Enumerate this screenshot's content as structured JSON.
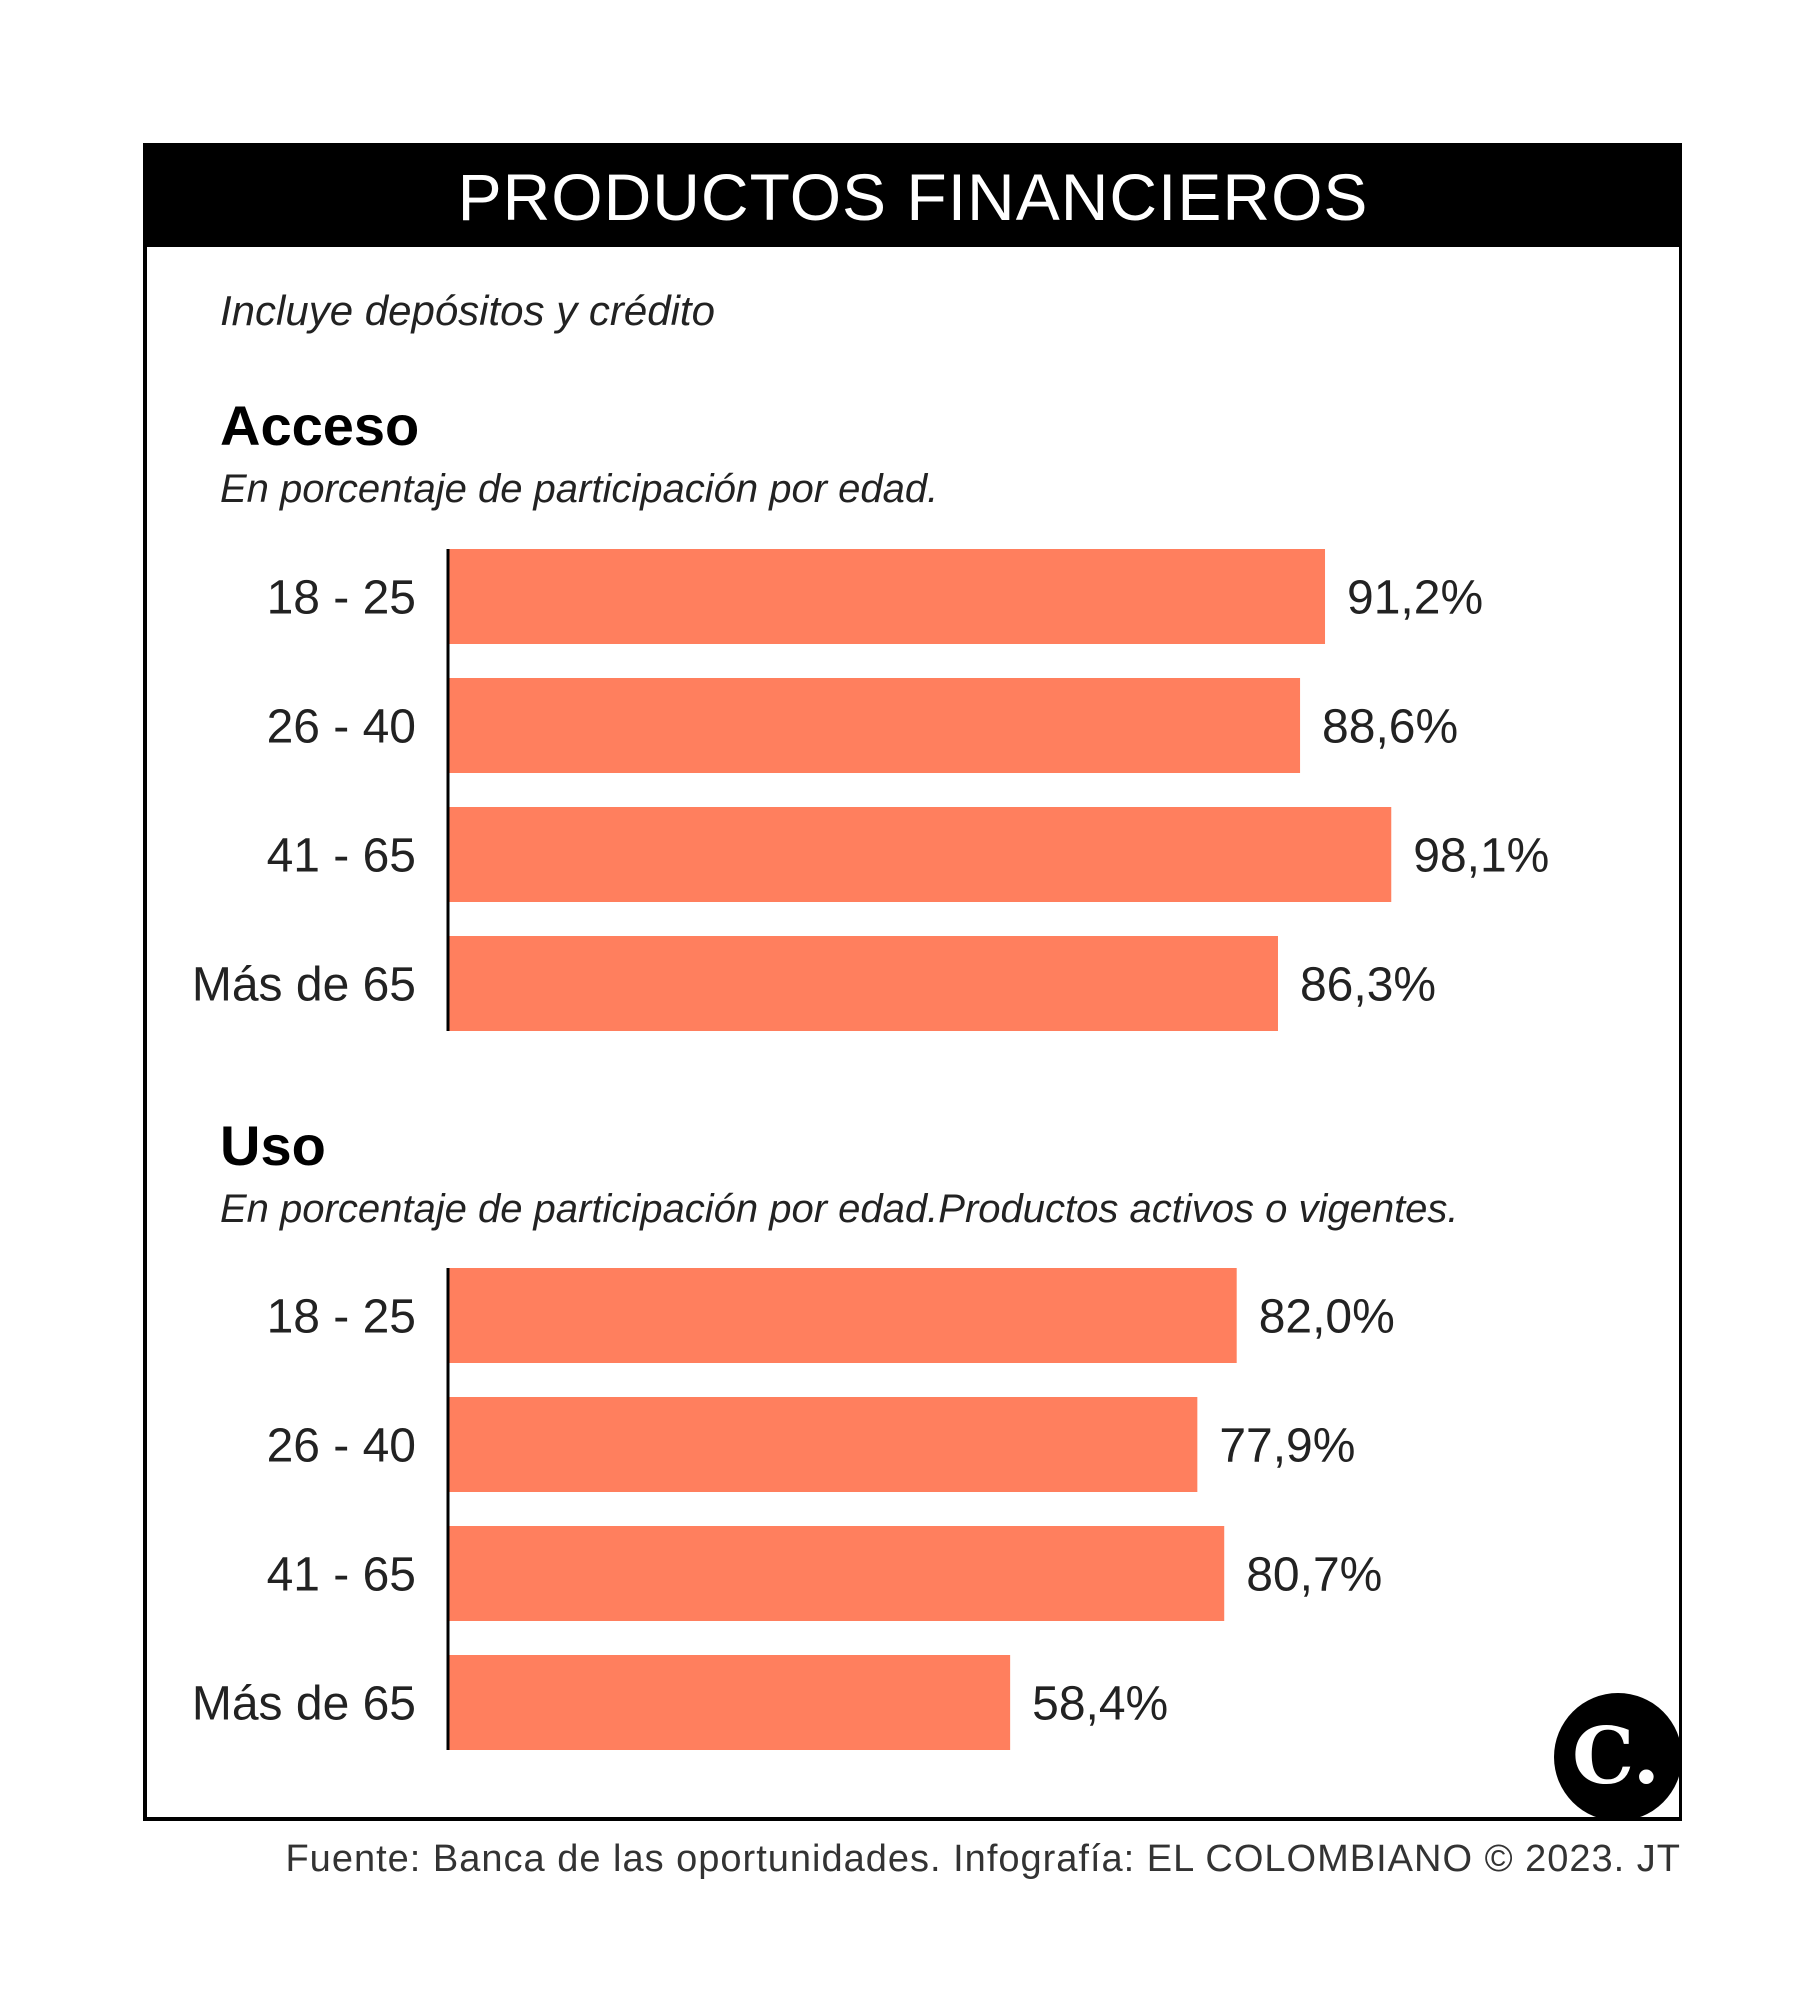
{
  "header": {
    "title": "PRODUCTOS FINANCIEROS"
  },
  "subtitle": "Incluye depósitos y crédito",
  "sections": [
    {
      "title": "Acceso",
      "subtitle": "En porcentaje de participación por edad."
    },
    {
      "title": "Uso",
      "subtitle": "En porcentaje de participación por edad.Productos activos o vigentes."
    }
  ],
  "chart_data": [
    {
      "type": "bar",
      "orientation": "horizontal",
      "title": "Acceso",
      "subtitle": "En porcentaje de participación por edad.",
      "categories": [
        "18 - 25",
        "26 - 40",
        "41 - 65",
        "Más de 65"
      ],
      "values": [
        91.2,
        88.6,
        98.1,
        86.3
      ],
      "value_labels": [
        "91,2%",
        "88,6%",
        "98,1%",
        "86,3%"
      ],
      "xlim": [
        0,
        100
      ],
      "grid": false,
      "bar_color": "#ff7f5e"
    },
    {
      "type": "bar",
      "orientation": "horizontal",
      "title": "Uso",
      "subtitle": "En porcentaje de participación por edad.Productos activos o vigentes.",
      "categories": [
        "18 - 25",
        "26 - 40",
        "41 - 65",
        "Más de 65"
      ],
      "values": [
        82.0,
        77.9,
        80.7,
        58.4
      ],
      "value_labels": [
        "82,0%",
        "77,9%",
        "80,7%",
        "58,4%"
      ],
      "xlim": [
        0,
        100
      ],
      "grid": false,
      "bar_color": "#ff7f5e"
    }
  ],
  "footer": "Fuente: Banca de las oportunidades. Infografía: EL COLOMBIANO © 2023. JT",
  "logo": {
    "icon": "el-colombiano-c-logo-icon",
    "letter": "C."
  }
}
